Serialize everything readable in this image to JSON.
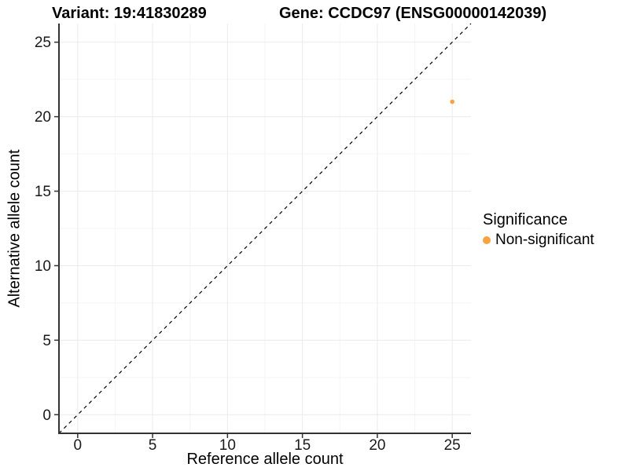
{
  "titles": {
    "variant": "Variant: 19:41830289",
    "gene": "Gene: CCDC97 (ENSG00000142039)"
  },
  "chart_data": {
    "type": "scatter",
    "title_left": "Variant: 19:41830289",
    "title_right": "Gene: CCDC97 (ENSG00000142039)",
    "xlabel": "Reference allele count",
    "ylabel": "Alternative allele count",
    "xlim": [
      -1.25,
      26.25
    ],
    "ylim": [
      -1.25,
      26.25
    ],
    "x_ticks": [
      0,
      5,
      10,
      15,
      20,
      25
    ],
    "y_ticks": [
      0,
      5,
      10,
      15,
      20,
      25
    ],
    "minor_tick_step": 2.5,
    "grid": true,
    "points": [
      {
        "x": 25,
        "y": 21,
        "series": "Non-significant"
      }
    ],
    "abline": {
      "slope": 1,
      "intercept": 0,
      "style": "dashed"
    },
    "legend": {
      "title": "Significance",
      "position": "right",
      "items": [
        {
          "label": "Non-significant",
          "color": "#F9A242"
        }
      ]
    },
    "colors": {
      "point": "#F9A242",
      "grid_major": "#EBEBEB",
      "grid_minor": "#F5F5F5",
      "axis_line": "#333333",
      "tick_mark": "#333333",
      "tick_label": "#1A1A1A",
      "abline": "#000000",
      "background": "#FFFFFF"
    }
  }
}
